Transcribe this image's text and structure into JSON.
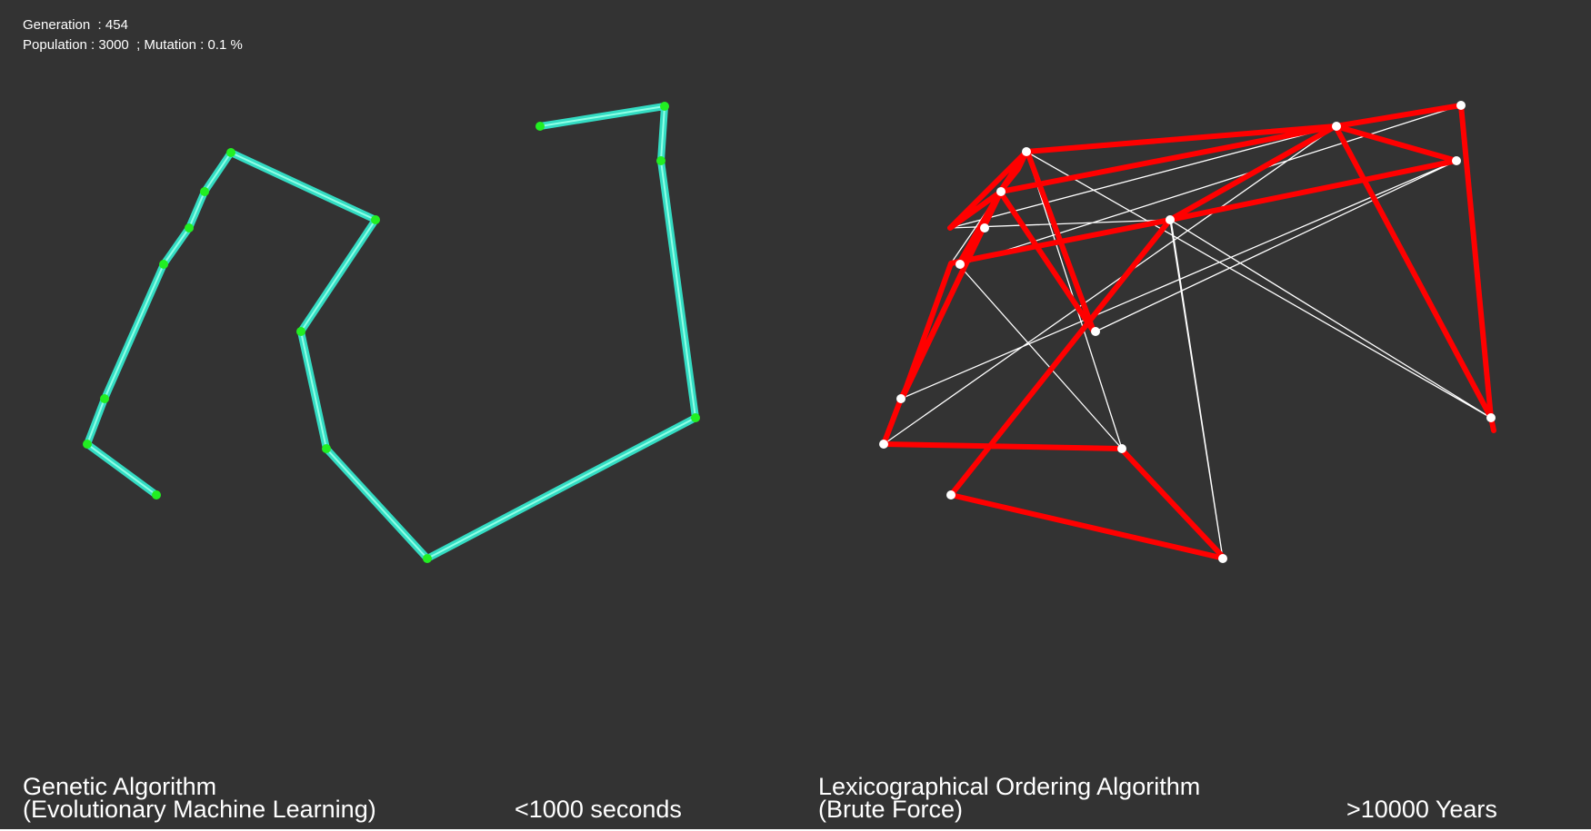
{
  "stats": {
    "generation": "Generation  : 454",
    "population_mutation": "Population : 3000  ; Mutation : 0.1 %"
  },
  "genetic_panel": {
    "title": "Genetic Algorithm",
    "subtitle": "(Evolutionary Machine Learning)",
    "time": "<1000 seconds"
  },
  "brute_force_panel": {
    "title": "Lexicographical Ordering Algorithm",
    "subtitle": "(Brute Force)",
    "time": ">10000 Years"
  },
  "colors": {
    "background": "#333333",
    "genetic_path_outer": "#33dcc3",
    "genetic_path_inner": "#7fffe0",
    "genetic_city": "#22ee22",
    "brute_best_path": "#ff0000",
    "brute_current_path": "#ffffff",
    "brute_city": "#ffffff"
  }
}
